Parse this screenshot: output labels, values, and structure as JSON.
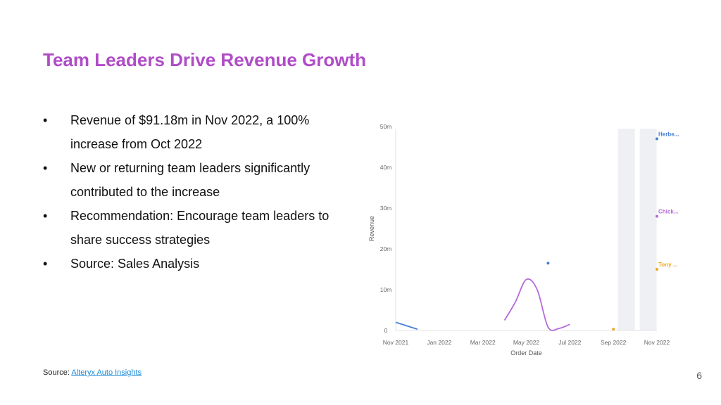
{
  "slide": {
    "title": "Team Leaders Drive Revenue Growth",
    "bullets": [
      "Revenue of $91.18m in Nov 2022, a 100% increase from Oct 2022",
      "New or returning team leaders significantly contributed to the increase",
      "Recommendation: Encourage team leaders to share success strategies",
      "Source: Sales Analysis"
    ],
    "bullet_symbol": "•",
    "source_label": "Source:",
    "source_link": "Alteryx Auto Insights",
    "page_number": "6"
  },
  "chart_data": {
    "type": "line",
    "xlabel": "Order Date",
    "ylabel": "Revenue",
    "y_ticks": [
      "0",
      "10m",
      "20m",
      "30m",
      "40m",
      "50m"
    ],
    "ylim": [
      0,
      50
    ],
    "x_ticks": [
      "Nov 2021",
      "Jan 2022",
      "Mar 2022",
      "May 2022",
      "Jul 2022",
      "Sep 2022",
      "Nov 2022"
    ],
    "x_tick_months": [
      0,
      2,
      4,
      6,
      8,
      10,
      12
    ],
    "highlight_months": [
      10.6,
      11.6
    ],
    "series": [
      {
        "name": "Herbe...",
        "color": "#4a7fd4",
        "points": [
          [
            0,
            2
          ],
          [
            1,
            0.3
          ]
        ],
        "end_point": [
          12,
          47
        ],
        "extra_points": [
          [
            7,
            16.5
          ]
        ]
      },
      {
        "name": "Chick...",
        "color": "#b56ad8",
        "points": [
          [
            5,
            2.5
          ],
          [
            5.5,
            7
          ],
          [
            6,
            12.5
          ],
          [
            6.5,
            10
          ],
          [
            7,
            0.8
          ],
          [
            7.5,
            0.5
          ],
          [
            8,
            1.5
          ]
        ],
        "end_point": [
          12,
          28
        ]
      },
      {
        "name": "Tony ...",
        "color": "#f0a81c",
        "points": [],
        "end_point": [
          12,
          15
        ],
        "extra_points": [
          [
            10,
            0.3
          ]
        ]
      }
    ]
  }
}
